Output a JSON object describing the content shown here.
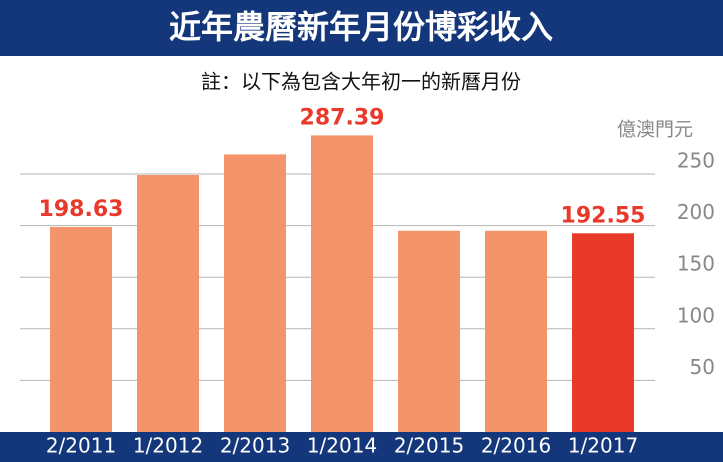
{
  "chart_data": {
    "type": "bar",
    "title": "近年農曆新年月份博彩收入",
    "subtitle": "註：以下為包含大年初一的新曆月份",
    "y_label": "億澳門元",
    "categories": [
      "2/2011",
      "1/2012",
      "2/2013",
      "1/2014",
      "2/2015",
      "2/2016",
      "1/2017"
    ],
    "values": [
      198.63,
      249,
      269,
      287.39,
      195,
      195,
      192.55
    ],
    "value_labels": [
      "198.63",
      null,
      null,
      "287.39",
      null,
      null,
      "192.55"
    ],
    "colors": [
      "#f4946b",
      "#f4946b",
      "#f4946b",
      "#f4946b",
      "#f4946b",
      "#f4946b",
      "#e8392a"
    ],
    "ylim": [
      0,
      300
    ],
    "yticks": [
      50,
      100,
      150,
      200,
      250
    ],
    "grid": true
  }
}
